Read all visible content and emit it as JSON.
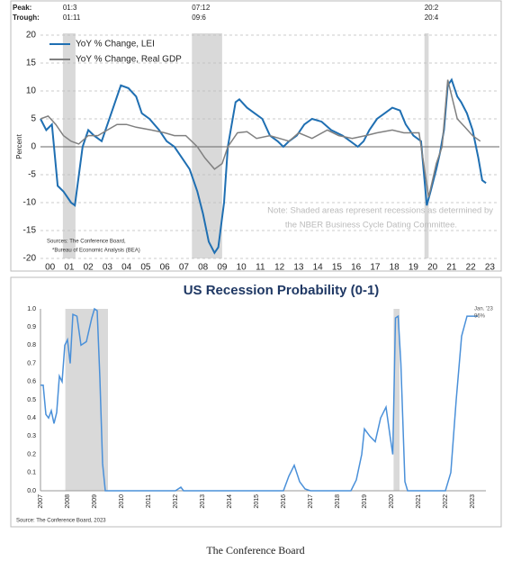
{
  "chart_data": [
    {
      "type": "line",
      "y_label": "Percent",
      "peak_label": "Peak:",
      "trough_label": "Trough:",
      "recessions": [
        {
          "peak": "01:3",
          "trough": "01:11",
          "start": 2001.17,
          "end": 2001.83
        },
        {
          "peak": "07:12",
          "trough": "09:6",
          "start": 2007.92,
          "end": 2009.5
        },
        {
          "peak": "20:2",
          "trough": "20:4",
          "start": 2020.08,
          "end": 2020.3
        }
      ],
      "recession_color": "#d9d9d9",
      "series": [
        {
          "name": "YoY % Change, LEI",
          "color": "#1f6fb2",
          "x": [
            2000.0,
            2000.3,
            2000.6,
            2000.9,
            2001.2,
            2001.6,
            2001.8,
            2002.2,
            2002.5,
            2002.8,
            2003.2,
            2003.5,
            2003.9,
            2004.2,
            2004.6,
            2005.0,
            2005.3,
            2005.7,
            2006.2,
            2006.6,
            2007.0,
            2007.4,
            2007.8,
            2008.2,
            2008.5,
            2008.8,
            2009.1,
            2009.3,
            2009.6,
            2009.8,
            2010.2,
            2010.4,
            2010.8,
            2011.2,
            2011.6,
            2012.0,
            2012.4,
            2012.7,
            2013.0,
            2013.4,
            2013.8,
            2014.2,
            2014.7,
            2015.2,
            2015.8,
            2016.2,
            2016.6,
            2016.9,
            2017.2,
            2017.6,
            2018.0,
            2018.4,
            2018.8,
            2019.1,
            2019.5,
            2019.9,
            2020.2,
            2020.4,
            2020.7,
            2020.9,
            2021.1,
            2021.3,
            2021.5,
            2021.8,
            2022.0,
            2022.3,
            2022.6,
            2022.9,
            2023.1,
            2023.3
          ],
          "values": [
            5,
            3,
            4,
            -7,
            -8,
            -10,
            -10.5,
            0,
            3,
            2,
            1,
            4,
            8,
            11,
            10.5,
            9,
            6,
            5,
            3,
            1,
            0,
            -2,
            -4,
            -8,
            -12,
            -17,
            -19,
            -18,
            -10,
            0,
            8,
            8.5,
            7,
            6,
            5,
            2,
            1,
            0,
            1,
            2,
            4,
            5,
            4.5,
            3,
            2,
            1,
            0,
            1,
            3,
            5,
            6,
            7,
            6.5,
            4,
            2,
            1,
            -10.5,
            -8,
            -4,
            -1,
            3,
            11,
            12,
            9,
            8,
            6,
            3,
            -2,
            -6,
            -6.5
          ]
        },
        {
          "name": "YoY % Change, Real GDP",
          "color": "#808080",
          "x": [
            2000.0,
            2000.4,
            2000.8,
            2001.2,
            2001.6,
            2002.0,
            2002.5,
            2003.0,
            2003.5,
            2004.0,
            2004.5,
            2005.0,
            2005.8,
            2006.5,
            2007.0,
            2007.6,
            2008.2,
            2008.6,
            2009.1,
            2009.5,
            2009.8,
            2010.3,
            2010.8,
            2011.3,
            2012.0,
            2012.5,
            2013.0,
            2013.5,
            2014.2,
            2015.0,
            2015.6,
            2016.3,
            2017.0,
            2017.6,
            2018.4,
            2019.0,
            2019.8,
            2020.3,
            2020.7,
            2021.0,
            2021.3,
            2021.8,
            2022.2,
            2022.6,
            2023.0
          ],
          "values": [
            5,
            5.5,
            4,
            2,
            1,
            0.5,
            2,
            2,
            3,
            4,
            4,
            3.5,
            3,
            2.5,
            2,
            2,
            0,
            -2,
            -4,
            -3,
            0,
            2.5,
            2.7,
            1.5,
            2,
            1.5,
            1,
            2.5,
            1.5,
            3,
            2,
            1.5,
            2,
            2.5,
            3,
            2.5,
            2.5,
            -9,
            -3,
            0,
            12,
            5,
            3.5,
            2,
            1
          ]
        }
      ],
      "xlim": [
        2000,
        2024
      ],
      "xticks": [
        {
          "value": 2000.5,
          "label": "00"
        },
        {
          "value": 2001.5,
          "label": "01"
        },
        {
          "value": 2002.5,
          "label": "02"
        },
        {
          "value": 2003.5,
          "label": "03"
        },
        {
          "value": 2004.5,
          "label": "04"
        },
        {
          "value": 2005.5,
          "label": "05"
        },
        {
          "value": 2006.5,
          "label": "06"
        },
        {
          "value": 2007.5,
          "label": "07"
        },
        {
          "value": 2008.5,
          "label": "08"
        },
        {
          "value": 2009.5,
          "label": "09"
        },
        {
          "value": 2010.5,
          "label": "10"
        },
        {
          "value": 2011.5,
          "label": "11"
        },
        {
          "value": 2012.5,
          "label": "12"
        },
        {
          "value": 2013.5,
          "label": "13"
        },
        {
          "value": 2014.5,
          "label": "14"
        },
        {
          "value": 2015.5,
          "label": "15"
        },
        {
          "value": 2016.5,
          "label": "16"
        },
        {
          "value": 2017.5,
          "label": "17"
        },
        {
          "value": 2018.5,
          "label": "18"
        },
        {
          "value": 2019.5,
          "label": "19"
        },
        {
          "value": 2020.5,
          "label": "20"
        },
        {
          "value": 2021.5,
          "label": "21"
        },
        {
          "value": 2022.5,
          "label": "22"
        },
        {
          "value": 2023.5,
          "label": "23"
        }
      ],
      "ylim": [
        -20,
        20
      ],
      "yticks": [
        20,
        15,
        10,
        5,
        0,
        -5,
        -10,
        -15,
        -20
      ],
      "grid": true,
      "zero_line": true,
      "note_lines": [
        "Note: Shaded areas represent recessions as determined by",
        "the NBER Business Cycle Dating Committee."
      ],
      "sources": [
        "Sources: The Conference Board,",
        "*Bureau of Economic Analysis (BEA)"
      ]
    },
    {
      "type": "line",
      "title": "US Recession Probability (0-1)",
      "recessions": [
        {
          "start": 2007.92,
          "end": 2009.5
        },
        {
          "start": 2020.08,
          "end": 2020.3
        }
      ],
      "recession_color": "#d9d9d9",
      "series": [
        {
          "color": "#4a90d9",
          "x": [
            2007.0,
            2007.1,
            2007.2,
            2007.3,
            2007.4,
            2007.5,
            2007.6,
            2007.7,
            2007.8,
            2007.9,
            2008.0,
            2008.1,
            2008.2,
            2008.35,
            2008.5,
            2008.7,
            2008.9,
            2009.0,
            2009.1,
            2009.2,
            2009.3,
            2009.4,
            2010.0,
            2012.0,
            2012.2,
            2012.3,
            2016.0,
            2016.2,
            2016.4,
            2016.6,
            2016.8,
            2017.0,
            2018.5,
            2018.7,
            2018.9,
            2019.0,
            2019.2,
            2019.4,
            2019.6,
            2019.8,
            2019.95,
            2020.05,
            2020.15,
            2020.25,
            2020.35,
            2020.5,
            2020.6,
            2021.0,
            2022.0,
            2022.2,
            2022.4,
            2022.6,
            2022.8,
            2023.0,
            2023.2
          ],
          "values": [
            0.58,
            0.58,
            0.42,
            0.4,
            0.44,
            0.37,
            0.43,
            0.63,
            0.6,
            0.8,
            0.83,
            0.7,
            0.97,
            0.96,
            0.8,
            0.82,
            0.95,
            1.0,
            0.99,
            0.62,
            0.15,
            0,
            0,
            0,
            0.02,
            0,
            0,
            0.08,
            0.14,
            0.05,
            0.01,
            0,
            0,
            0.06,
            0.2,
            0.34,
            0.3,
            0.27,
            0.4,
            0.46,
            0.3,
            0.2,
            0.95,
            0.96,
            0.7,
            0.05,
            0,
            0,
            0,
            0.1,
            0.5,
            0.85,
            0.96,
            0.96,
            0.96
          ]
        }
      ],
      "xlim": [
        2007,
        2023.5
      ],
      "xticks": [
        2007,
        2008,
        2009,
        2010,
        2011,
        2012,
        2013,
        2014,
        2015,
        2016,
        2017,
        2018,
        2019,
        2020,
        2021,
        2022,
        2023
      ],
      "ylim": [
        0,
        1
      ],
      "yticks": [
        {
          "value": 0,
          "label": "0.0"
        },
        0.1,
        0.2,
        0.3,
        0.4,
        0.5,
        0.6,
        0.7,
        0.8,
        0.9,
        {
          "value": 1,
          "label": "1.0"
        }
      ],
      "grid": false,
      "annotation": [
        "Jan. '23",
        "96%"
      ],
      "sources": [
        "Source: The Conference Board, 2023"
      ]
    }
  ],
  "caption": "The Conference Board"
}
